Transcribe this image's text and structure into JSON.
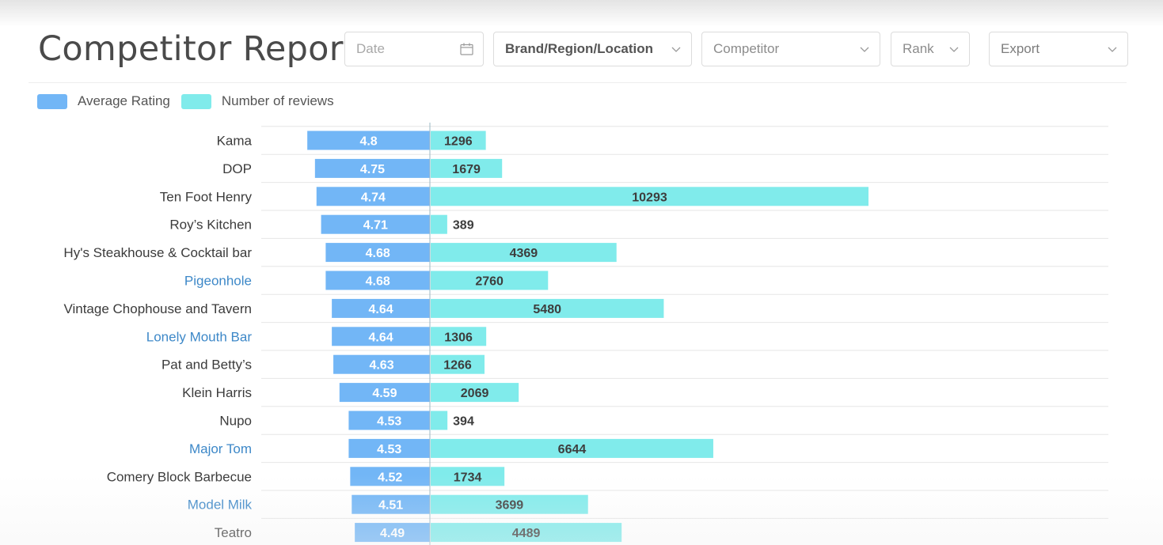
{
  "page": {
    "title": "Competitor Report"
  },
  "filters": {
    "date_placeholder": "Date",
    "brand_region_location": "Brand/Region/Location",
    "competitor": "Competitor",
    "rank": "Rank",
    "export": "Export"
  },
  "icons": {
    "date": "calendar-icon",
    "dropdown": "chevron-down-icon"
  },
  "colors": {
    "average_rating": "#72b6f6",
    "number_of_reviews": "#80ebeb",
    "link_text": "#3d88c8"
  },
  "chart_data": {
    "type": "bar",
    "orientation": "horizontal",
    "layout": "diverging",
    "legend": [
      "Average Rating",
      "Number of reviews"
    ],
    "legend_position": "top-left",
    "grid": true,
    "categories": [
      "Kama",
      "DOP",
      "Ten Foot Henry",
      "Roy’s Kitchen",
      "Hy's Steakhouse & Cocktail bar",
      "Pigeonhole",
      "Vintage Chophouse and Tavern",
      "Lonely Mouth Bar",
      "Pat and Betty’s",
      "Klein Harris",
      "Nupo",
      "Major Tom",
      "Comery Block Barbecue",
      "Model Milk",
      "Teatro"
    ],
    "highlighted": [
      false,
      false,
      false,
      false,
      false,
      true,
      false,
      true,
      false,
      false,
      false,
      true,
      false,
      true,
      false
    ],
    "series": [
      {
        "name": "Average Rating",
        "values": [
          4.8,
          4.75,
          4.74,
          4.71,
          4.68,
          4.68,
          4.64,
          4.64,
          4.63,
          4.59,
          4.53,
          4.53,
          4.52,
          4.51,
          4.49
        ]
      },
      {
        "name": "Number of reviews",
        "values": [
          1296,
          1679,
          10293,
          389,
          4369,
          2760,
          5480,
          1306,
          1266,
          2069,
          394,
          6644,
          1734,
          3699,
          4489
        ]
      }
    ]
  }
}
